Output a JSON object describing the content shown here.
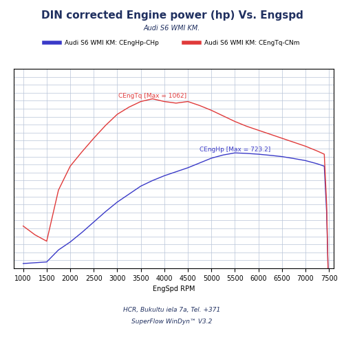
{
  "chart_data": {
    "type": "line",
    "title": "DIN corrected Engine power (hp) Vs. Engspd",
    "subtitle": "Audi S6 WMI KM.",
    "x_label": "EngSpd RPM",
    "footer": [
      "HCR, Bukultu iela 7a, Tel. +371",
      "SuperFlow WinDyn™ V3.2"
    ],
    "annotations": [
      "CEngHp [Max = 723.2]",
      "CEngTq [Max = 1062]"
    ],
    "x": [
      1000,
      1250,
      1500,
      1750,
      2000,
      2250,
      2500,
      2750,
      3000,
      3250,
      3500,
      3750,
      4000,
      4250,
      4500,
      4750,
      5000,
      5250,
      5500,
      5750,
      6000,
      6250,
      6500,
      6750,
      7000,
      7250,
      7400,
      7450,
      7480
    ],
    "series": [
      {
        "name": "Audi S6 WMI KM: CEngHp-CHp",
        "color": "#3a3ac8",
        "values": [
          30,
          35,
          40,
          115,
          165,
          225,
          290,
          355,
          415,
          465,
          515,
          550,
          580,
          605,
          630,
          660,
          690,
          710,
          723.2,
          720,
          715,
          708,
          700,
          688,
          675,
          655,
          640,
          350,
          0
        ]
      },
      {
        "name": "Audi S6 WMI KM: CEngTq-CNm",
        "color": "#e03a3a",
        "values": [
          265,
          210,
          170,
          490,
          640,
          730,
          815,
          895,
          965,
          1010,
          1045,
          1062,
          1045,
          1035,
          1045,
          1020,
          990,
          955,
          920,
          890,
          865,
          840,
          815,
          790,
          765,
          735,
          715,
          400,
          0
        ]
      }
    ],
    "xlim": [
      800,
      7600
    ],
    "xticks": [
      1000,
      1500,
      2000,
      2500,
      3000,
      3500,
      4000,
      4500,
      5000,
      5500,
      6000,
      6500,
      7000,
      7500
    ],
    "ylim": [
      0,
      1250
    ],
    "yticks": [
      0,
      50,
      100,
      150,
      200,
      250,
      300,
      350,
      400,
      450,
      500,
      550,
      600,
      650,
      700,
      750,
      800,
      850,
      900,
      950,
      1000,
      1050,
      1100,
      1150,
      1200,
      1250
    ],
    "grid": true,
    "legend": "upper center",
    "tick_labels": "x"
  }
}
